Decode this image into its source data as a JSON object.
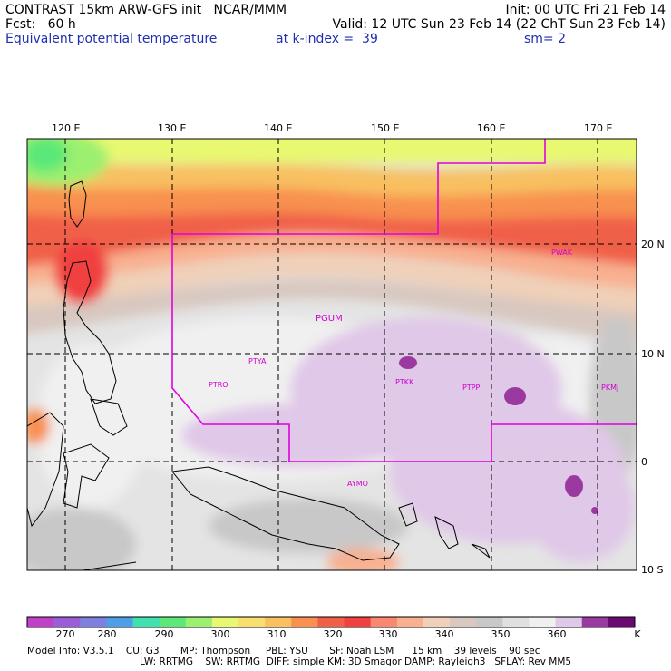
{
  "header": {
    "line1_left": "CONTRAST 15km ARW-GFS init   NCAR/MMM",
    "line1_right": "Init: 00 UTC Fri 21 Feb 14",
    "line2_left": "Fcst:   60 h",
    "line2_right": "Valid: 12 UTC Sun 23 Feb 14 (22 ChT Sun 23 Feb 14)",
    "line3_left": "Equivalent potential temperature",
    "line3_mid": "at k-index =  39",
    "line3_right": "sm= 2"
  },
  "map": {
    "lon_ticks": [
      "120 E",
      "130 E",
      "140 E",
      "150 E",
      "160 E",
      "170 E"
    ],
    "lat_ticks": [
      "20 N",
      "10 N",
      "0",
      "10 S"
    ],
    "stations": [
      {
        "id": "PWAK"
      },
      {
        "id": "PGUM"
      },
      {
        "id": "PTYA"
      },
      {
        "id": "PTRO"
      },
      {
        "id": "PTKK"
      },
      {
        "id": "PTPP"
      },
      {
        "id": "PKMJ"
      },
      {
        "id": "AYMO"
      }
    ]
  },
  "colorbar": {
    "labels": [
      "270",
      "280",
      "290",
      "300",
      "310",
      "320",
      "330",
      "340",
      "350",
      "360"
    ],
    "unit": "K",
    "colors": [
      "#c040c8",
      "#9a5fd8",
      "#7f7fe0",
      "#4f9fe8",
      "#40e0b0",
      "#5ce878",
      "#9cf070",
      "#e8f870",
      "#f8e070",
      "#f8c060",
      "#f89050",
      "#f06048",
      "#f04040",
      "#f88870",
      "#f8b090",
      "#f0d0b8",
      "#d8c8c0",
      "#c8c8c8",
      "#e0e0e0",
      "#f0f0f0",
      "#e0c8e8",
      "#9a3aa0",
      "#6a0a70"
    ]
  },
  "footer": {
    "line1": "Model Info: V3.5.1    CU: G3       MP: Thompson     PBL: YSU       SF: Noah LSM      15 km    39 levels    90 sec",
    "line2": "LW: RRTMG    SW: RRTMG  DIFF: simple KM: 3D Smagor DAMP: Rayleigh3   SFLAY: Rev MM5"
  }
}
